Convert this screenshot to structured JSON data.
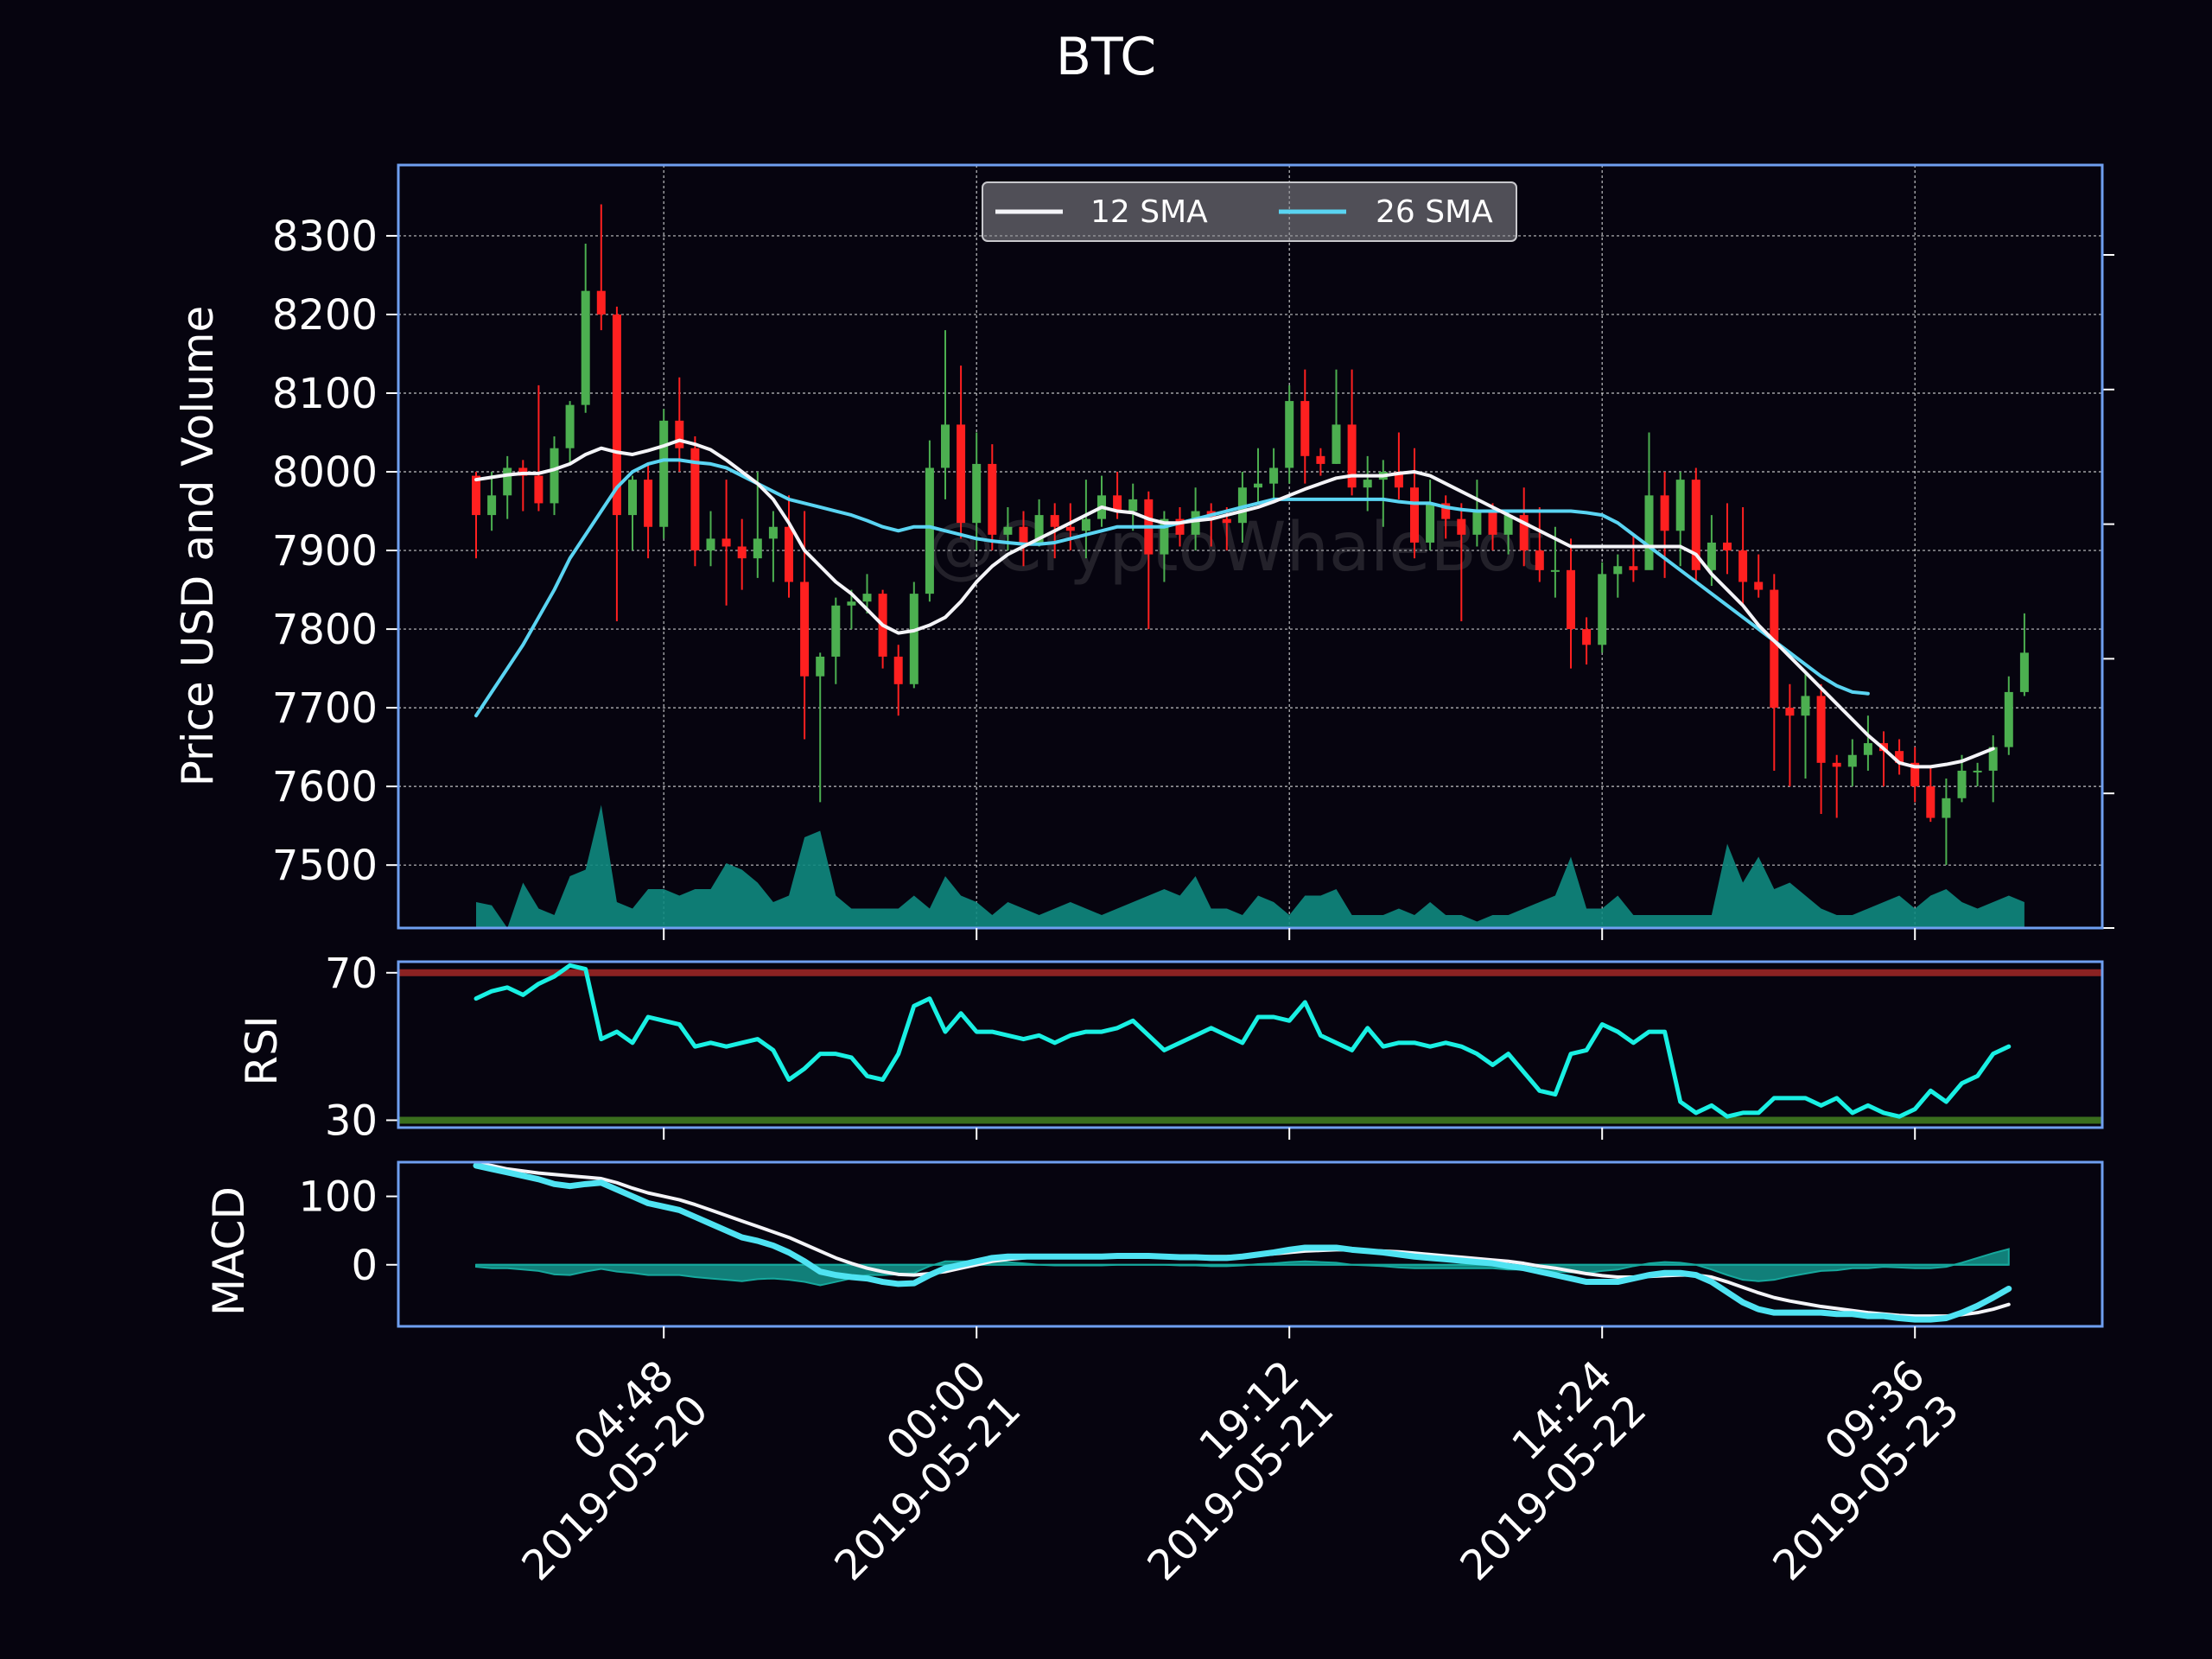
{
  "chart_data": {
    "type": "candlestick",
    "title": "BTC",
    "watermark": "@CryptoWhaleBot",
    "colors": {
      "background": "#06040f",
      "frame": "#6f9ff0",
      "up": "#4caf50",
      "down": "#ff2020",
      "sma12": "#f4f4f8",
      "sma26": "#5ad4f2",
      "volume": "#0f8a80",
      "rsi": "#19f0e3",
      "rsi_overbought": "#8b2222",
      "rsi_oversold": "#3a6e1e",
      "macd_line": "#4fe3f2",
      "macd_signal": "#f4f4f8",
      "macd_hist": "#16a89d"
    },
    "x_ticks": [
      {
        "index": 12,
        "label_time": "04:48",
        "label_date": "2019-05-20"
      },
      {
        "index": 32,
        "label_time": "00:00",
        "label_date": "2019-05-21"
      },
      {
        "index": 52,
        "label_time": "19:12",
        "label_date": "2019-05-21"
      },
      {
        "index": 72,
        "label_time": "14:24",
        "label_date": "2019-05-22"
      },
      {
        "index": 92,
        "label_time": "09:36",
        "label_date": "2019-05-23"
      }
    ],
    "price": {
      "ylabel": "Price USD and Volume",
      "ylim": [
        7420,
        8390
      ],
      "yticks": [
        7500,
        7600,
        7700,
        7800,
        7900,
        8000,
        8100,
        8200,
        8300
      ],
      "legend_position": "top-center",
      "legend": [
        {
          "name": "12 SMA",
          "key": "sma12"
        },
        {
          "name": "26 SMA",
          "key": "sma26"
        }
      ],
      "volume_secondary_ticks": 6,
      "candles": [
        [
          7995,
          7945,
          8000,
          7890
        ],
        [
          7945,
          7970,
          8000,
          7925
        ],
        [
          7970,
          8005,
          8020,
          7940
        ],
        [
          8005,
          7995,
          8015,
          7950
        ],
        [
          7995,
          7960,
          8110,
          7950
        ],
        [
          7960,
          8030,
          8045,
          7945
        ],
        [
          8030,
          8085,
          8090,
          8010
        ],
        [
          8085,
          8230,
          8290,
          8075
        ],
        [
          8230,
          8200,
          8340,
          8180
        ],
        [
          8200,
          7945,
          8210,
          7810
        ],
        [
          7945,
          7990,
          7995,
          7900
        ],
        [
          7990,
          7930,
          8010,
          7890
        ],
        [
          7930,
          8065,
          8080,
          7915
        ],
        [
          8065,
          8030,
          8120,
          8000
        ],
        [
          8030,
          7900,
          8045,
          7880
        ],
        [
          7900,
          7915,
          7950,
          7880
        ],
        [
          7915,
          7905,
          7990,
          7830
        ],
        [
          7905,
          7890,
          7940,
          7850
        ],
        [
          7890,
          7915,
          8000,
          7865
        ],
        [
          7915,
          7930,
          7950,
          7860
        ],
        [
          7930,
          7860,
          7970,
          7840
        ],
        [
          7860,
          7740,
          7950,
          7660
        ],
        [
          7740,
          7765,
          7770,
          7580
        ],
        [
          7765,
          7830,
          7840,
          7730
        ],
        [
          7830,
          7835,
          7850,
          7800
        ],
        [
          7835,
          7845,
          7870,
          7820
        ],
        [
          7845,
          7765,
          7850,
          7750
        ],
        [
          7765,
          7730,
          7780,
          7690
        ],
        [
          7730,
          7845,
          7860,
          7725
        ],
        [
          7845,
          8005,
          8040,
          7835
        ],
        [
          8005,
          8060,
          8180,
          7965
        ],
        [
          8060,
          7935,
          8135,
          7915
        ],
        [
          7935,
          8010,
          8050,
          7900
        ],
        [
          8010,
          7920,
          8035,
          7900
        ],
        [
          7920,
          7930,
          7955,
          7900
        ],
        [
          7930,
          7910,
          7950,
          7880
        ],
        [
          7910,
          7945,
          7965,
          7905
        ],
        [
          7945,
          7930,
          7960,
          7890
        ],
        [
          7930,
          7925,
          7960,
          7900
        ],
        [
          7925,
          7940,
          7990,
          7890
        ],
        [
          7940,
          7970,
          7995,
          7930
        ],
        [
          7970,
          7950,
          8000,
          7940
        ],
        [
          7950,
          7965,
          7985,
          7925
        ],
        [
          7965,
          7895,
          7975,
          7800
        ],
        [
          7895,
          7940,
          7950,
          7860
        ],
        [
          7940,
          7920,
          7955,
          7905
        ],
        [
          7920,
          7950,
          7980,
          7900
        ],
        [
          7950,
          7940,
          7960,
          7905
        ],
        [
          7940,
          7935,
          7955,
          7900
        ],
        [
          7935,
          7980,
          8000,
          7910
        ],
        [
          7980,
          7985,
          8030,
          7960
        ],
        [
          7985,
          8005,
          8030,
          7960
        ],
        [
          8005,
          8090,
          8110,
          7985
        ],
        [
          8090,
          8020,
          8130,
          7985
        ],
        [
          8020,
          8010,
          8030,
          7995
        ],
        [
          8010,
          8060,
          8130,
          8010
        ],
        [
          8060,
          7980,
          8130,
          7970
        ],
        [
          7980,
          7990,
          8020,
          7950
        ],
        [
          7990,
          8000,
          8015,
          7930
        ],
        [
          8000,
          7980,
          8050,
          7965
        ],
        [
          7980,
          7910,
          8030,
          7890
        ],
        [
          7910,
          7960,
          7990,
          7900
        ],
        [
          7960,
          7940,
          7970,
          7915
        ],
        [
          7940,
          7920,
          7960,
          7810
        ],
        [
          7920,
          7950,
          7990,
          7905
        ],
        [
          7950,
          7920,
          7960,
          7900
        ],
        [
          7920,
          7945,
          7950,
          7895
        ],
        [
          7945,
          7900,
          7980,
          7880
        ],
        [
          7900,
          7875,
          7955,
          7860
        ],
        [
          7875,
          7875,
          7930,
          7840
        ],
        [
          7875,
          7800,
          7915,
          7750
        ],
        [
          7800,
          7780,
          7815,
          7755
        ],
        [
          7780,
          7870,
          7885,
          7770
        ],
        [
          7870,
          7880,
          7895,
          7840
        ],
        [
          7880,
          7875,
          7920,
          7860
        ],
        [
          7875,
          7970,
          8050,
          7880
        ],
        [
          7970,
          7925,
          8000,
          7865
        ],
        [
          7925,
          7990,
          8000,
          7880
        ],
        [
          7990,
          7875,
          8005,
          7860
        ],
        [
          7875,
          7910,
          7945,
          7855
        ],
        [
          7910,
          7900,
          7960,
          7870
        ],
        [
          7900,
          7860,
          7955,
          7830
        ],
        [
          7860,
          7850,
          7895,
          7840
        ],
        [
          7850,
          7700,
          7870,
          7620
        ],
        [
          7700,
          7690,
          7730,
          7600
        ],
        [
          7690,
          7715,
          7745,
          7610
        ],
        [
          7715,
          7630,
          7730,
          7565
        ],
        [
          7630,
          7625,
          7640,
          7560
        ],
        [
          7625,
          7640,
          7660,
          7600
        ],
        [
          7640,
          7655,
          7690,
          7620
        ],
        [
          7655,
          7645,
          7670,
          7600
        ],
        [
          7645,
          7630,
          7660,
          7615
        ],
        [
          7630,
          7600,
          7650,
          7580
        ],
        [
          7600,
          7560,
          7625,
          7555
        ],
        [
          7560,
          7585,
          7610,
          7500
        ],
        [
          7585,
          7620,
          7640,
          7580
        ],
        [
          7620,
          7620,
          7630,
          7600
        ],
        [
          7620,
          7650,
          7665,
          7580
        ],
        [
          7650,
          7720,
          7740,
          7640
        ],
        [
          7720,
          7770,
          7820,
          7715
        ]
      ],
      "sma12": [
        7990,
        7993,
        7996,
        7998,
        7998,
        8003,
        8010,
        8022,
        8030,
        8025,
        8022,
        8027,
        8033,
        8040,
        8035,
        8028,
        8015,
        8000,
        7985,
        7965,
        7935,
        7900,
        7880,
        7860,
        7845,
        7825,
        7805,
        7795,
        7798,
        7805,
        7815,
        7835,
        7860,
        7880,
        7895,
        7905,
        7915,
        7925,
        7935,
        7945,
        7955,
        7950,
        7948,
        7940,
        7935,
        7935,
        7938,
        7940,
        7945,
        7950,
        7955,
        7962,
        7970,
        7978,
        7985,
        7992,
        7995,
        7995,
        7995,
        7998,
        8000,
        7995,
        7985,
        7975,
        7965,
        7955,
        7945,
        7935,
        7925,
        7915,
        7905,
        7905,
        7905,
        7905,
        7905,
        7905,
        7905,
        7905,
        7895,
        7870,
        7850,
        7830,
        7805,
        7785,
        7765,
        7745,
        7725,
        7705,
        7685,
        7665,
        7648,
        7630,
        7625,
        7625,
        7628,
        7632,
        7640,
        7648
      ],
      "sma26": [
        7690,
        7720,
        7750,
        7780,
        7815,
        7850,
        7890,
        7920,
        7950,
        7980,
        8000,
        8010,
        8015,
        8015,
        8012,
        8010,
        8005,
        7995,
        7985,
        7975,
        7965,
        7960,
        7955,
        7950,
        7945,
        7938,
        7930,
        7925,
        7930,
        7930,
        7925,
        7920,
        7915,
        7912,
        7910,
        7908,
        7908,
        7910,
        7915,
        7920,
        7925,
        7930,
        7930,
        7930,
        7930,
        7935,
        7940,
        7945,
        7950,
        7955,
        7960,
        7965,
        7965,
        7965,
        7965,
        7965,
        7965,
        7965,
        7965,
        7962,
        7960,
        7960,
        7955,
        7952,
        7950,
        7950,
        7950,
        7950,
        7950,
        7950,
        7950,
        7948,
        7945,
        7935,
        7920,
        7905,
        7890,
        7875,
        7860,
        7845,
        7830,
        7815,
        7800,
        7785,
        7770,
        7755,
        7740,
        7728,
        7720,
        7718
      ],
      "volume": [
        0.04,
        0.035,
        0,
        0.07,
        0.03,
        0.02,
        0.08,
        0.09,
        0.19,
        0.04,
        0.03,
        0.06,
        0.06,
        0.05,
        0.06,
        0.06,
        0.1,
        0.09,
        0.07,
        0.04,
        0.05,
        0.14,
        0.15,
        0.05,
        0.03,
        0.03,
        0.03,
        0.03,
        0.05,
        0.03,
        0.08,
        0.05,
        0.04,
        0.02,
        0.04,
        0.03,
        0.02,
        0.03,
        0.04,
        0.03,
        0.02,
        0.03,
        0.04,
        0.05,
        0.06,
        0.05,
        0.08,
        0.03,
        0.03,
        0.02,
        0.05,
        0.04,
        0.02,
        0.05,
        0.05,
        0.06,
        0.02,
        0.02,
        0.02,
        0.03,
        0.02,
        0.04,
        0.02,
        0.02,
        0.01,
        0.02,
        0.02,
        0.03,
        0.04,
        0.05,
        0.11,
        0.03,
        0.03,
        0.05,
        0.02,
        0.02,
        0.02,
        0.02,
        0.02,
        0.02,
        0.13,
        0.07,
        0.11,
        0.06,
        0.07,
        0.05,
        0.03,
        0.02,
        0.02,
        0.03,
        0.04,
        0.05,
        0.03,
        0.05,
        0.06,
        0.04,
        0.03,
        0.04,
        0.05,
        0.04
      ]
    },
    "rsi": {
      "ylabel": "RSI",
      "ylim": [
        28,
        73
      ],
      "yticks": [
        30,
        70
      ],
      "overbought": 70,
      "oversold": 30,
      "values": [
        63,
        65,
        66,
        64,
        67,
        69,
        72,
        71,
        52,
        54,
        51,
        58,
        57,
        56,
        50,
        51,
        50,
        51,
        52,
        49,
        41,
        44,
        48,
        48,
        47,
        42,
        41,
        48,
        61,
        63,
        54,
        59,
        54,
        54,
        53,
        52,
        53,
        51,
        53,
        54,
        54,
        55,
        57,
        53,
        49,
        51,
        53,
        55,
        53,
        51,
        58,
        58,
        57,
        62,
        53,
        51,
        49,
        55,
        50,
        51,
        51,
        50,
        51,
        50,
        48,
        45,
        48,
        43,
        38,
        37,
        48,
        49,
        56,
        54,
        51,
        54,
        54,
        35,
        32,
        34,
        31,
        32,
        32,
        36,
        36,
        36,
        34,
        36,
        32,
        34,
        32,
        31,
        33,
        38,
        35,
        40,
        42,
        48,
        50
      ]
    },
    "macd": {
      "ylabel": "MACD",
      "ylim": [
        -90,
        150
      ],
      "yticks": [
        0,
        100
      ],
      "macd": [
        145,
        140,
        135,
        130,
        125,
        118,
        115,
        118,
        120,
        110,
        100,
        90,
        85,
        80,
        70,
        60,
        50,
        40,
        35,
        28,
        18,
        5,
        -10,
        -15,
        -18,
        -20,
        -25,
        -28,
        -27,
        -15,
        -5,
        0,
        5,
        10,
        12,
        12,
        12,
        12,
        12,
        12,
        12,
        13,
        13,
        13,
        12,
        11,
        11,
        10,
        10,
        12,
        15,
        18,
        22,
        25,
        25,
        25,
        22,
        20,
        18,
        15,
        12,
        10,
        8,
        6,
        4,
        2,
        -2,
        -5,
        -10,
        -15,
        -20,
        -25,
        -25,
        -25,
        -20,
        -15,
        -12,
        -12,
        -15,
        -25,
        -40,
        -55,
        -65,
        -70,
        -70,
        -70,
        -70,
        -72,
        -72,
        -75,
        -75,
        -78,
        -80,
        -80,
        -78,
        -70,
        -60,
        -48,
        -35
      ],
      "signal": [
        148,
        145,
        140,
        137,
        134,
        132,
        130,
        128,
        126,
        120,
        112,
        105,
        100,
        95,
        88,
        80,
        72,
        64,
        56,
        48,
        40,
        30,
        20,
        10,
        2,
        -5,
        -10,
        -14,
        -15,
        -13,
        -10,
        -5,
        0,
        5,
        8,
        10,
        12,
        13,
        13,
        13,
        13,
        13,
        13,
        13,
        12,
        12,
        12,
        12,
        12,
        13,
        14,
        16,
        18,
        20,
        21,
        22,
        22,
        21,
        20,
        19,
        17,
        15,
        13,
        11,
        9,
        7,
        5,
        2,
        -2,
        -5,
        -9,
        -13,
        -16,
        -18,
        -18,
        -17,
        -16,
        -15,
        -15,
        -18,
        -25,
        -33,
        -41,
        -48,
        -53,
        -57,
        -61,
        -64,
        -67,
        -70,
        -72,
        -74,
        -75,
        -75,
        -75,
        -73,
        -70,
        -65,
        -58
      ],
      "histogram": [
        -3,
        -5,
        -5,
        -7,
        -9,
        -14,
        -15,
        -10,
        -6,
        -10,
        -12,
        -15,
        -15,
        -15,
        -18,
        -20,
        -22,
        -24,
        -21,
        -20,
        -22,
        -25,
        -30,
        -25,
        -20,
        -15,
        -15,
        -14,
        -12,
        -2,
        5,
        5,
        5,
        5,
        4,
        2,
        0,
        -1,
        -1,
        -1,
        -1,
        0,
        0,
        0,
        0,
        -1,
        -1,
        -2,
        -2,
        -1,
        1,
        2,
        4,
        5,
        4,
        3,
        0,
        -1,
        -2,
        -4,
        -5,
        -5,
        -5,
        -5,
        -5,
        -5,
        -7,
        -7,
        -8,
        -10,
        -11,
        -12,
        -9,
        -7,
        -2,
        2,
        4,
        3,
        0,
        -7,
        -15,
        -22,
        -24,
        -22,
        -17,
        -13,
        -9,
        -8,
        -5,
        -5,
        -3,
        -4,
        -5,
        -5,
        -3,
        3,
        10,
        17,
        23
      ]
    }
  }
}
